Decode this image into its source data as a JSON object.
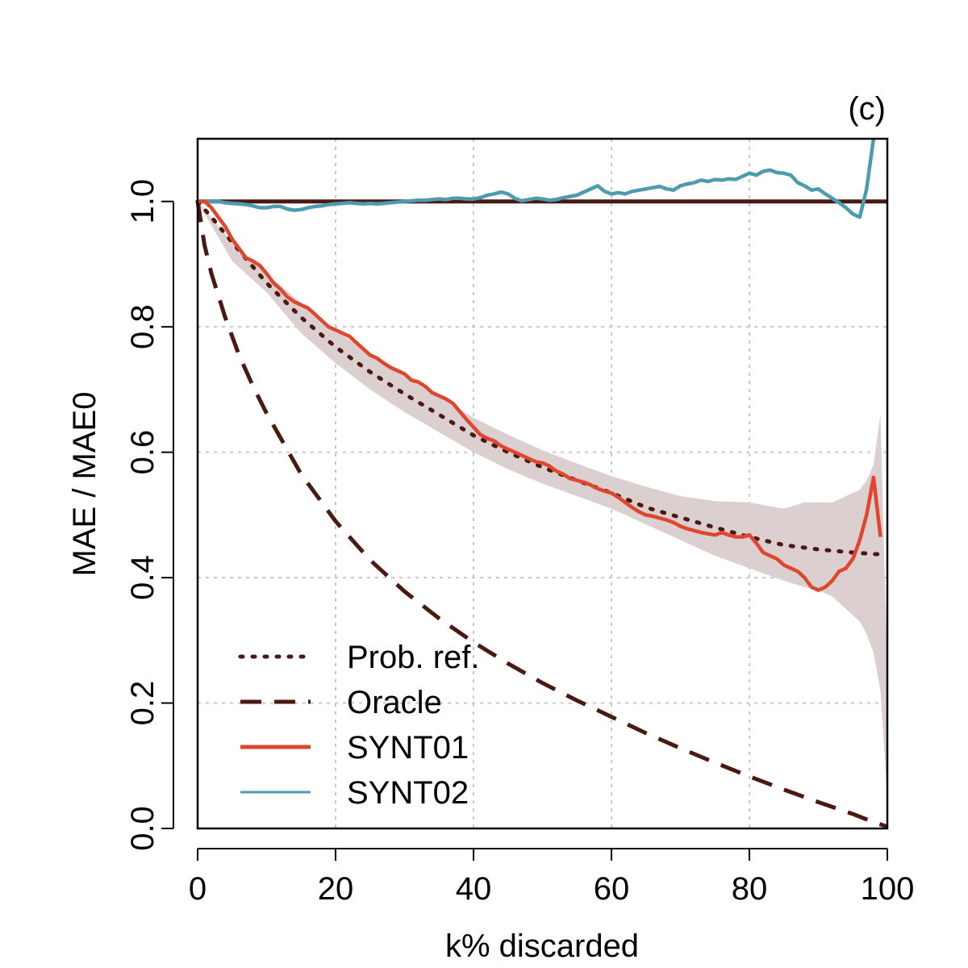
{
  "chart_data": {
    "type": "line",
    "panel_label": "(c)",
    "xlabel": "k% discarded",
    "ylabel": "MAE / MAE0",
    "xlim": [
      0,
      100
    ],
    "ylim": [
      0,
      1.1
    ],
    "x_ticks": [
      0,
      20,
      40,
      60,
      80,
      100
    ],
    "y_ticks": [
      0.0,
      0.2,
      0.4,
      0.6,
      0.8,
      1.0
    ],
    "x_tick_labels": [
      "0",
      "20",
      "40",
      "60",
      "80",
      "100"
    ],
    "y_tick_labels": [
      "0.0",
      "0.2",
      "0.4",
      "0.6",
      "0.8",
      "1.0"
    ],
    "grid": true,
    "reference_line": {
      "y": 1.0,
      "color": "#4a1a12"
    },
    "legend": {
      "position": "bottom-left",
      "entries": [
        {
          "label": "Prob. ref.",
          "style": "dotted",
          "color": "#4a1a12"
        },
        {
          "label": "Oracle",
          "style": "dashed",
          "color": "#4a1a12"
        },
        {
          "label": "SYNT01",
          "style": "solid",
          "color": "#e0452e"
        },
        {
          "label": "SYNT02",
          "style": "solid",
          "color": "#4e9bb0"
        }
      ]
    },
    "band": {
      "name": "Prob. ref. interval",
      "color": "#dccfcf",
      "x": [
        0,
        5,
        10,
        15,
        20,
        25,
        30,
        35,
        40,
        45,
        50,
        55,
        60,
        65,
        70,
        75,
        80,
        85,
        88,
        90,
        92,
        94,
        96,
        97,
        98,
        99,
        100
      ],
      "upper": [
        1.0,
        0.935,
        0.885,
        0.838,
        0.795,
        0.757,
        0.722,
        0.688,
        0.655,
        0.628,
        0.603,
        0.582,
        0.562,
        0.545,
        0.53,
        0.522,
        0.52,
        0.51,
        0.52,
        0.52,
        0.52,
        0.53,
        0.54,
        0.555,
        0.58,
        0.66,
        0.25
      ],
      "lower": [
        1.0,
        0.905,
        0.855,
        0.79,
        0.742,
        0.7,
        0.664,
        0.632,
        0.6,
        0.573,
        0.55,
        0.53,
        0.51,
        0.485,
        0.46,
        0.435,
        0.415,
        0.395,
        0.385,
        0.38,
        0.37,
        0.35,
        0.33,
        0.31,
        0.28,
        0.22,
        0.05
      ]
    },
    "series": [
      {
        "name": "Prob. ref.",
        "style": "dotted",
        "color": "#4a1a12",
        "x": [
          0,
          2,
          5,
          10,
          15,
          20,
          25,
          30,
          35,
          40,
          45,
          50,
          55,
          60,
          65,
          70,
          75,
          80,
          85,
          90,
          95,
          99
        ],
        "y": [
          1.0,
          0.975,
          0.935,
          0.87,
          0.815,
          0.768,
          0.728,
          0.693,
          0.66,
          0.627,
          0.6,
          0.576,
          0.555,
          0.535,
          0.512,
          0.496,
          0.48,
          0.465,
          0.452,
          0.445,
          0.44,
          0.437
        ]
      },
      {
        "name": "Oracle",
        "style": "dashed",
        "color": "#4a1a12",
        "x": [
          0,
          1,
          2,
          4,
          6,
          8,
          10,
          15,
          20,
          25,
          30,
          35,
          40,
          45,
          50,
          55,
          60,
          65,
          70,
          75,
          80,
          85,
          90,
          95,
          98,
          100
        ],
        "y": [
          1.0,
          0.93,
          0.885,
          0.815,
          0.755,
          0.706,
          0.662,
          0.565,
          0.49,
          0.428,
          0.378,
          0.335,
          0.297,
          0.263,
          0.232,
          0.204,
          0.178,
          0.152,
          0.128,
          0.105,
          0.083,
          0.062,
          0.042,
          0.023,
          0.01,
          0.003
        ]
      },
      {
        "name": "SYNT01",
        "style": "solid",
        "color": "#e0452e",
        "x": [
          0,
          1,
          2,
          3,
          4,
          5,
          6,
          7,
          8,
          9,
          10,
          11,
          12,
          13,
          14,
          15,
          16,
          17,
          18,
          19,
          20,
          21,
          22,
          23,
          24,
          25,
          26,
          27,
          28,
          29,
          30,
          31,
          32,
          33,
          34,
          35,
          36,
          37,
          38,
          39,
          40,
          41,
          42,
          43,
          44,
          45,
          46,
          47,
          48,
          49,
          50,
          51,
          52,
          53,
          54,
          55,
          56,
          57,
          58,
          59,
          60,
          61,
          62,
          63,
          64,
          65,
          66,
          67,
          68,
          69,
          70,
          71,
          72,
          73,
          74,
          75,
          76,
          77,
          78,
          79,
          80,
          81,
          82,
          83,
          84,
          85,
          86,
          87,
          88,
          89,
          90,
          91,
          92,
          93,
          94,
          95,
          96,
          97,
          98,
          99
        ],
        "y": [
          1.0,
          1.0,
          0.99,
          0.975,
          0.96,
          0.94,
          0.925,
          0.91,
          0.905,
          0.898,
          0.885,
          0.87,
          0.86,
          0.848,
          0.84,
          0.835,
          0.83,
          0.82,
          0.81,
          0.8,
          0.795,
          0.79,
          0.785,
          0.775,
          0.765,
          0.755,
          0.75,
          0.742,
          0.735,
          0.73,
          0.725,
          0.715,
          0.712,
          0.705,
          0.695,
          0.69,
          0.685,
          0.678,
          0.665,
          0.652,
          0.64,
          0.628,
          0.622,
          0.618,
          0.61,
          0.605,
          0.6,
          0.595,
          0.59,
          0.585,
          0.583,
          0.578,
          0.57,
          0.565,
          0.558,
          0.555,
          0.552,
          0.548,
          0.542,
          0.538,
          0.535,
          0.528,
          0.52,
          0.512,
          0.505,
          0.5,
          0.498,
          0.495,
          0.492,
          0.488,
          0.482,
          0.478,
          0.475,
          0.472,
          0.47,
          0.468,
          0.472,
          0.468,
          0.465,
          0.465,
          0.468,
          0.455,
          0.44,
          0.435,
          0.43,
          0.42,
          0.415,
          0.41,
          0.4,
          0.385,
          0.38,
          0.385,
          0.395,
          0.41,
          0.415,
          0.43,
          0.46,
          0.5,
          0.56,
          0.465
        ]
      },
      {
        "name": "SYNT02",
        "style": "solid",
        "color": "#4e9bb0",
        "x": [
          0,
          1,
          2,
          3,
          4,
          5,
          6,
          7,
          8,
          9,
          10,
          11,
          12,
          13,
          14,
          15,
          16,
          17,
          18,
          19,
          20,
          21,
          22,
          23,
          24,
          25,
          26,
          27,
          28,
          29,
          30,
          31,
          32,
          33,
          34,
          35,
          36,
          37,
          38,
          39,
          40,
          41,
          42,
          43,
          44,
          45,
          46,
          47,
          48,
          49,
          50,
          51,
          52,
          53,
          54,
          55,
          56,
          57,
          58,
          59,
          60,
          61,
          62,
          63,
          64,
          65,
          66,
          67,
          68,
          69,
          70,
          71,
          72,
          73,
          74,
          75,
          76,
          77,
          78,
          79,
          80,
          81,
          82,
          83,
          84,
          85,
          86,
          87,
          88,
          89,
          90,
          91,
          92,
          93,
          94,
          95,
          96,
          97,
          97.5,
          98
        ],
        "y": [
          1.0,
          1.0,
          1.0,
          1.0,
          0.998,
          0.997,
          0.996,
          0.995,
          0.993,
          0.99,
          0.99,
          0.992,
          0.992,
          0.988,
          0.986,
          0.987,
          0.99,
          0.992,
          0.993,
          0.995,
          0.996,
          0.997,
          0.998,
          0.997,
          0.996,
          0.997,
          0.996,
          0.997,
          0.998,
          0.999,
          1.0,
          1.001,
          1.002,
          1.002,
          1.003,
          1.004,
          1.003,
          1.005,
          1.005,
          1.004,
          1.004,
          1.006,
          1.01,
          1.012,
          1.015,
          1.012,
          1.005,
          1.001,
          1.003,
          1.005,
          1.004,
          1.002,
          1.003,
          1.006,
          1.008,
          1.01,
          1.015,
          1.02,
          1.025,
          1.016,
          1.012,
          1.014,
          1.012,
          1.016,
          1.018,
          1.02,
          1.022,
          1.024,
          1.02,
          1.018,
          1.025,
          1.028,
          1.03,
          1.034,
          1.032,
          1.035,
          1.034,
          1.036,
          1.035,
          1.04,
          1.045,
          1.042,
          1.048,
          1.05,
          1.046,
          1.045,
          1.042,
          1.03,
          1.025,
          1.018,
          1.02,
          1.012,
          1.005,
          0.998,
          0.99,
          0.98,
          0.975,
          1.02,
          1.06,
          1.1
        ]
      }
    ]
  }
}
